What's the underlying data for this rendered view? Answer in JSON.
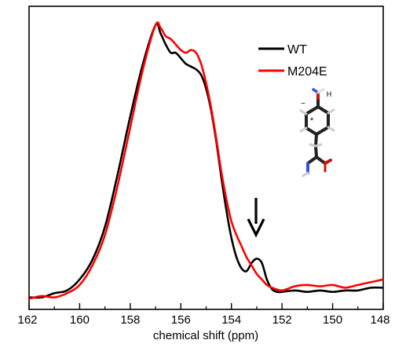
{
  "chart_data": {
    "type": "line",
    "title": "",
    "xlabel": "chemical shift (ppm)",
    "ylabel": "",
    "xlim": [
      162,
      148
    ],
    "x_reversed": true,
    "ylim": [
      0,
      1.0
    ],
    "grid": false,
    "legend_position": "top-right",
    "x_ticks": [
      162,
      160,
      158,
      156,
      154,
      152,
      150,
      148
    ],
    "x_tick_labels": [
      "162",
      "160",
      "158",
      "156",
      "154",
      "152",
      "150",
      "148"
    ],
    "series": [
      {
        "name": "WT",
        "color": "#000000",
        "points": [
          [
            162.0,
            0.015
          ],
          [
            161.5,
            0.015
          ],
          [
            161.0,
            0.03
          ],
          [
            160.5,
            0.04
          ],
          [
            160.0,
            0.08
          ],
          [
            159.5,
            0.15
          ],
          [
            159.0,
            0.27
          ],
          [
            158.5,
            0.46
          ],
          [
            158.0,
            0.67
          ],
          [
            157.5,
            0.86
          ],
          [
            157.0,
            1.0
          ],
          [
            156.8,
            0.97
          ],
          [
            156.6,
            0.93
          ],
          [
            156.4,
            0.9
          ],
          [
            156.2,
            0.9
          ],
          [
            156.0,
            0.88
          ],
          [
            155.8,
            0.86
          ],
          [
            155.6,
            0.85
          ],
          [
            155.4,
            0.84
          ],
          [
            155.2,
            0.82
          ],
          [
            155.0,
            0.77
          ],
          [
            154.8,
            0.69
          ],
          [
            154.6,
            0.58
          ],
          [
            154.4,
            0.45
          ],
          [
            154.2,
            0.33
          ],
          [
            154.0,
            0.23
          ],
          [
            153.8,
            0.16
          ],
          [
            153.6,
            0.12
          ],
          [
            153.4,
            0.11
          ],
          [
            153.2,
            0.14
          ],
          [
            153.0,
            0.155
          ],
          [
            152.8,
            0.14
          ],
          [
            152.6,
            0.08
          ],
          [
            152.4,
            0.045
          ],
          [
            152.2,
            0.035
          ],
          [
            152.0,
            0.035
          ],
          [
            151.5,
            0.04
          ],
          [
            151.0,
            0.035
          ],
          [
            150.5,
            0.04
          ],
          [
            150.0,
            0.035
          ],
          [
            149.5,
            0.04
          ],
          [
            149.0,
            0.04
          ],
          [
            148.5,
            0.05
          ],
          [
            148.0,
            0.05
          ]
        ]
      },
      {
        "name": "M204E",
        "color": "#ff0000",
        "points": [
          [
            162.0,
            0.01
          ],
          [
            161.5,
            0.02
          ],
          [
            161.0,
            0.015
          ],
          [
            160.5,
            0.03
          ],
          [
            160.0,
            0.06
          ],
          [
            159.5,
            0.13
          ],
          [
            159.0,
            0.24
          ],
          [
            158.5,
            0.42
          ],
          [
            158.0,
            0.63
          ],
          [
            157.5,
            0.84
          ],
          [
            157.0,
            1.0
          ],
          [
            156.8,
            0.99
          ],
          [
            156.6,
            0.96
          ],
          [
            156.4,
            0.95
          ],
          [
            156.2,
            0.93
          ],
          [
            156.0,
            0.91
          ],
          [
            155.8,
            0.9
          ],
          [
            155.6,
            0.91
          ],
          [
            155.4,
            0.9
          ],
          [
            155.2,
            0.86
          ],
          [
            155.0,
            0.79
          ],
          [
            154.8,
            0.7
          ],
          [
            154.6,
            0.59
          ],
          [
            154.4,
            0.47
          ],
          [
            154.2,
            0.37
          ],
          [
            154.0,
            0.29
          ],
          [
            153.8,
            0.24
          ],
          [
            153.6,
            0.2
          ],
          [
            153.4,
            0.16
          ],
          [
            153.2,
            0.13
          ],
          [
            153.0,
            0.1
          ],
          [
            152.8,
            0.08
          ],
          [
            152.6,
            0.06
          ],
          [
            152.4,
            0.05
          ],
          [
            152.0,
            0.04
          ],
          [
            151.5,
            0.055
          ],
          [
            151.0,
            0.06
          ],
          [
            150.5,
            0.055
          ],
          [
            150.0,
            0.06
          ],
          [
            149.5,
            0.05
          ],
          [
            149.0,
            0.06
          ],
          [
            148.5,
            0.07
          ],
          [
            148.0,
            0.08
          ]
        ]
      }
    ],
    "annotations": [
      {
        "type": "arrow",
        "label": "",
        "x": 153.0,
        "y_from": 0.33,
        "y_to": 0.2
      }
    ],
    "inset": {
      "kind": "molecular-structure-icon",
      "label": "tyrosine side chain stick model"
    }
  }
}
